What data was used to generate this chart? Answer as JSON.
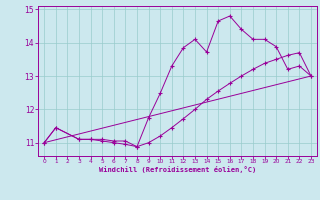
{
  "xlabel": "Windchill (Refroidissement éolien,°C)",
  "bg_color": "#cce8ee",
  "line_color": "#990099",
  "grid_color": "#99cccc",
  "xlim": [
    -0.5,
    23.5
  ],
  "ylim": [
    10.6,
    15.1
  ],
  "yticks": [
    11,
    12,
    13,
    14,
    15
  ],
  "xticks": [
    0,
    1,
    2,
    3,
    4,
    5,
    6,
    7,
    8,
    9,
    10,
    11,
    12,
    13,
    14,
    15,
    16,
    17,
    18,
    19,
    20,
    21,
    22,
    23
  ],
  "series1_x": [
    0,
    1,
    3,
    4,
    5,
    6,
    7,
    8,
    9,
    10,
    11,
    12,
    13,
    14,
    15,
    16,
    17,
    18,
    19,
    20,
    21,
    22,
    23
  ],
  "series1_y": [
    11.0,
    11.45,
    11.1,
    11.1,
    11.1,
    11.05,
    11.05,
    10.88,
    11.75,
    12.48,
    13.3,
    13.85,
    14.1,
    13.72,
    14.65,
    14.8,
    14.4,
    14.1,
    14.1,
    13.88,
    13.2,
    13.3,
    13.0
  ],
  "series2_x": [
    0,
    1,
    3,
    4,
    5,
    6,
    7,
    8,
    9,
    10,
    11,
    12,
    13,
    14,
    15,
    16,
    17,
    18,
    19,
    20,
    21,
    22,
    23
  ],
  "series2_y": [
    11.0,
    11.45,
    11.1,
    11.1,
    11.05,
    11.0,
    10.95,
    10.88,
    11.0,
    11.2,
    11.45,
    11.72,
    12.0,
    12.3,
    12.55,
    12.78,
    13.0,
    13.2,
    13.38,
    13.5,
    13.62,
    13.7,
    13.0
  ],
  "series3_x": [
    0,
    23
  ],
  "series3_y": [
    11.0,
    13.0
  ]
}
